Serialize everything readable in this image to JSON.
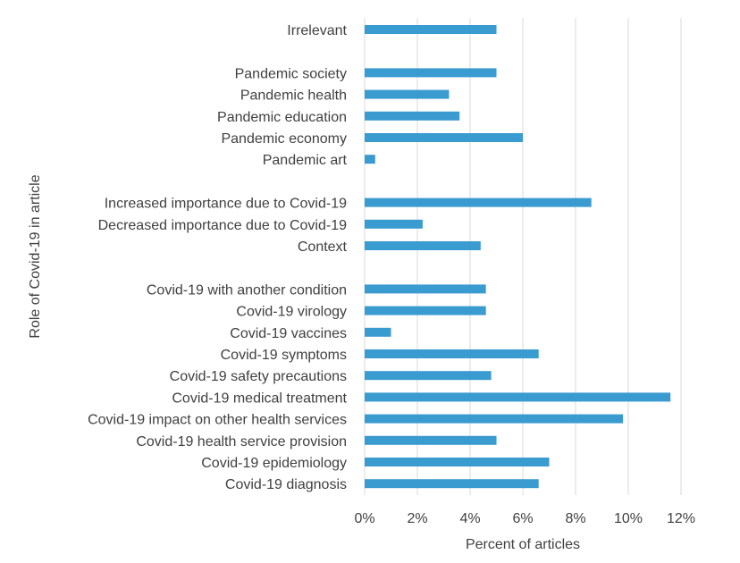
{
  "chart_data": {
    "type": "bar",
    "orientation": "horizontal",
    "title": "",
    "xlabel": "Percent of articles",
    "ylabel": "Role of Covid-19 in article",
    "xlim": [
      0,
      12
    ],
    "x_ticks": [
      0,
      2,
      4,
      6,
      8,
      10,
      12
    ],
    "x_tick_labels": [
      "0%",
      "2%",
      "4%",
      "6%",
      "8%",
      "10%",
      "12%"
    ],
    "grid": "vertical",
    "legend": "none",
    "bar_color": "#3a9bd1",
    "categories": [
      "Irrelevant",
      "Pandemic society",
      "Pandemic health",
      "Pandemic education",
      "Pandemic economy",
      "Pandemic art",
      "Increased importance due to Covid-19",
      "Decreased importance due to Covid-19",
      "Context",
      "Covid-19 with another condition",
      "Covid-19 virology",
      "Covid-19 vaccines",
      "Covid-19 symptoms",
      "Covid-19 safety precautions",
      "Covid-19 medical treatment",
      "Covid-19 impact on other health services",
      "Covid-19 health service provision",
      "Covid-19 epidemiology",
      "Covid-19 diagnosis"
    ],
    "values": [
      5.0,
      5.0,
      3.2,
      3.6,
      6.0,
      0.4,
      8.6,
      2.2,
      4.4,
      4.6,
      4.6,
      1.0,
      6.6,
      4.8,
      11.6,
      9.8,
      5.0,
      7.0,
      6.6
    ],
    "category_group_start_after": [
      0,
      5,
      8
    ]
  }
}
